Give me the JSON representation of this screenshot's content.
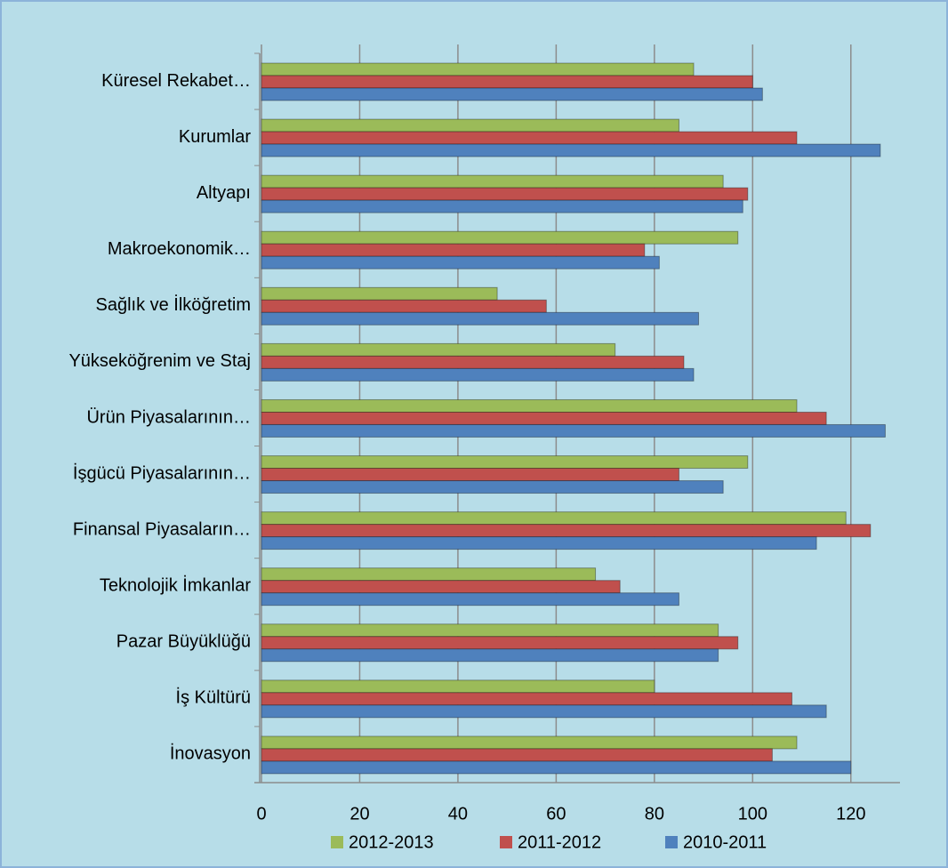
{
  "chart_data": {
    "type": "hbar",
    "categories": [
      "Küresel Rekabet…",
      "Kurumlar",
      "Altyapı",
      "Makroekonomik…",
      "Sağlık ve İlköğretim",
      "Yükseköğrenim ve Staj",
      "Ürün Piyasalarının…",
      "İşgücü Piyasalarının…",
      "Finansal Piyasaların…",
      "Teknolojik İmkanlar",
      "Pazar Büyüklüğü",
      "İş Kültürü",
      "İnovasyon"
    ],
    "series": [
      {
        "name": "2012-2013",
        "color": "#9bbb59",
        "values": [
          88,
          85,
          94,
          97,
          48,
          72,
          109,
          99,
          119,
          68,
          93,
          80,
          109
        ]
      },
      {
        "name": "2011-2012",
        "color": "#c0504d",
        "values": [
          100,
          109,
          99,
          78,
          58,
          86,
          115,
          85,
          124,
          73,
          97,
          108,
          104
        ]
      },
      {
        "name": "2010-2011",
        "color": "#4f81bd",
        "values": [
          102,
          126,
          98,
          81,
          89,
          88,
          127,
          94,
          113,
          85,
          93,
          115,
          120
        ]
      }
    ],
    "xlim": [
      0,
      130
    ],
    "xticks": [
      0,
      20,
      40,
      60,
      80,
      100,
      120
    ],
    "grid": true,
    "legend": "bottom"
  }
}
